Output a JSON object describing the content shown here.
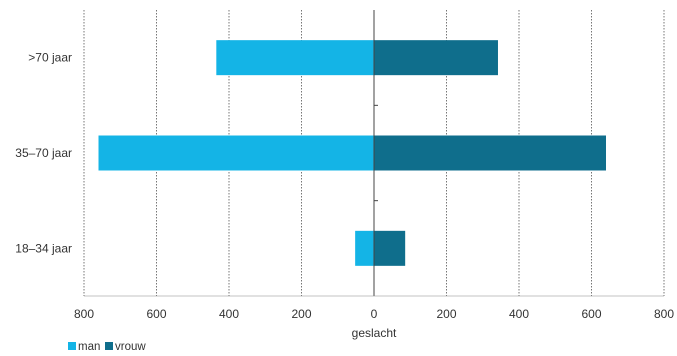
{
  "chart_data": {
    "type": "bar",
    "orientation": "horizontal",
    "layout": "diverging",
    "categories": [
      ">70 jaar",
      "35–70 jaar",
      "18–34 jaar"
    ],
    "series": [
      {
        "name": "man",
        "values": [
          435,
          760,
          52
        ],
        "color": "#14b4e6",
        "direction": "left"
      },
      {
        "name": "vrouw",
        "values": [
          342,
          640,
          86
        ],
        "color": "#0f6e8c",
        "direction": "right"
      }
    ],
    "xlabel": "geslacht",
    "xlim": [
      -800,
      800
    ],
    "ticks": [
      -800,
      -600,
      -400,
      -200,
      0,
      200,
      400,
      600,
      800
    ],
    "tick_labels": [
      "800",
      "600",
      "400",
      "200",
      "0",
      "200",
      "400",
      "600",
      "800"
    ],
    "grid": "vertical-dotted",
    "legend_position": "bottom-left"
  }
}
